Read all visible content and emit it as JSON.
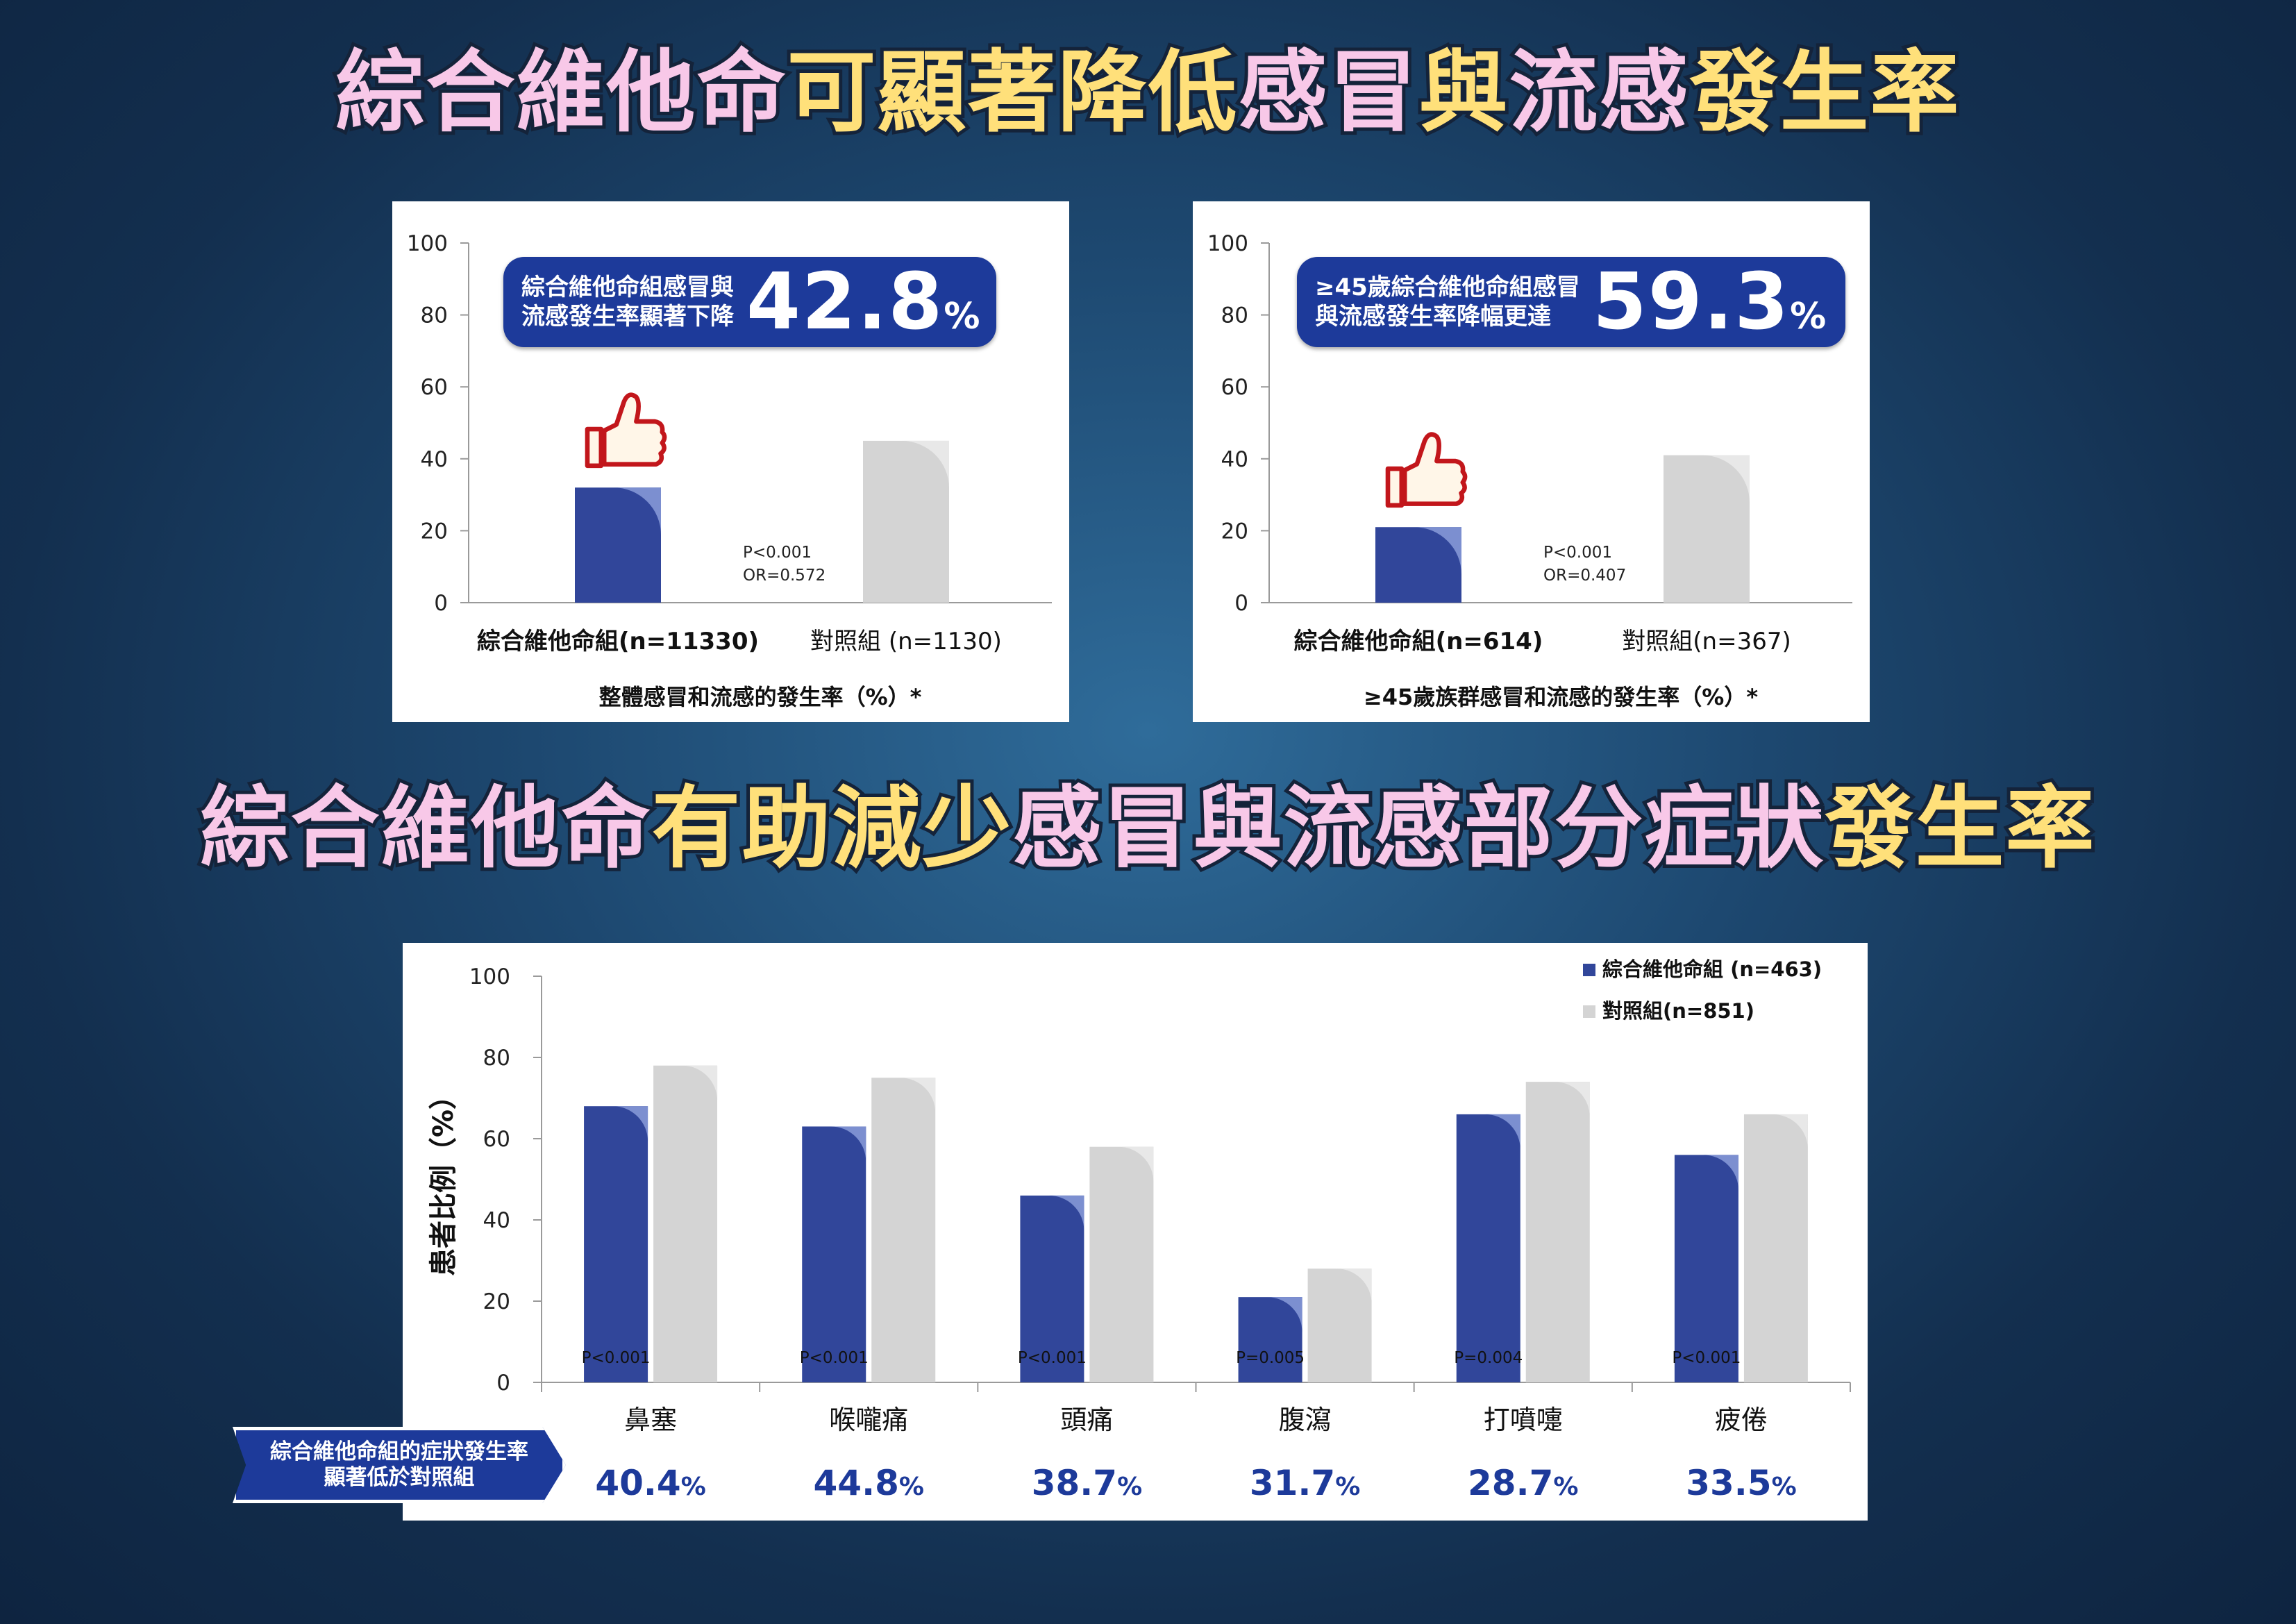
{
  "titles": {
    "top": [
      "綜合維他命",
      "可顯著降低",
      "感冒",
      "與",
      "流感",
      "發生率"
    ],
    "bottom": [
      "綜合維他命",
      "有助減少",
      "感冒與流感部分症狀",
      "發生率"
    ]
  },
  "colors": {
    "pink": "#f8c8e8",
    "yellow": "#ffe07a",
    "vitamin_bar": "#31469a",
    "control_bar": "#d4d4d4",
    "callout": "#1d3a9a"
  },
  "callout1": {
    "text": [
      "綜合維他命組感冒與",
      "流感發生率顯著下降"
    ],
    "number": "42.8",
    "unit": "%"
  },
  "callout2": {
    "text": [
      "≥45歲綜合維他命組感冒",
      "與流感發生率降幅更達"
    ],
    "number": "59.3",
    "unit": "%"
  },
  "banner": {
    "lines": [
      "綜合維他命組的症狀發生率",
      "顯著低於對照組"
    ]
  },
  "chart_data": [
    {
      "type": "bar",
      "categories": [
        "綜合維他命組(n=11330)",
        "對照組 (n=1130)"
      ],
      "values": [
        32,
        45
      ],
      "xlabel": "整體感冒和流感的發生率（%）*",
      "ylim": [
        0,
        100
      ],
      "yticks": [
        0,
        20,
        40,
        60,
        80,
        100
      ],
      "annotations": [
        "P<0.001",
        "OR=0.572"
      ],
      "icon": "thumbs-up-icon"
    },
    {
      "type": "bar",
      "categories": [
        "綜合維他命組(n=614)",
        "對照組(n=367)"
      ],
      "values": [
        21,
        41
      ],
      "xlabel": "≥45歲族群感冒和流感的發生率（%）*",
      "ylim": [
        0,
        100
      ],
      "yticks": [
        0,
        20,
        40,
        60,
        80,
        100
      ],
      "annotations": [
        "P<0.001",
        "OR=0.407"
      ],
      "icon": "thumbs-up-icon"
    },
    {
      "type": "bar",
      "categories": [
        "鼻塞",
        "喉嚨痛",
        "頭痛",
        "腹瀉",
        "打噴嚏",
        "疲倦"
      ],
      "series": [
        {
          "name": "綜合維他命組 (n=463)",
          "values": [
            68,
            63,
            46,
            21,
            66,
            56
          ]
        },
        {
          "name": "對照組(n=851)",
          "values": [
            78,
            75,
            58,
            28,
            74,
            66
          ]
        }
      ],
      "pvalues": [
        "P<0.001",
        "P<0.001",
        "P<0.001",
        "P=0.005",
        "P=0.004",
        "P<0.001"
      ],
      "reductions": [
        "40.4",
        "44.8",
        "38.7",
        "31.7",
        "28.7",
        "33.5"
      ],
      "reduction_unit": "%",
      "ylabel": "患者比例（%）",
      "ylim": [
        0,
        100
      ],
      "yticks": [
        0,
        20,
        40,
        60,
        80,
        100
      ],
      "legend": "top-right"
    }
  ]
}
